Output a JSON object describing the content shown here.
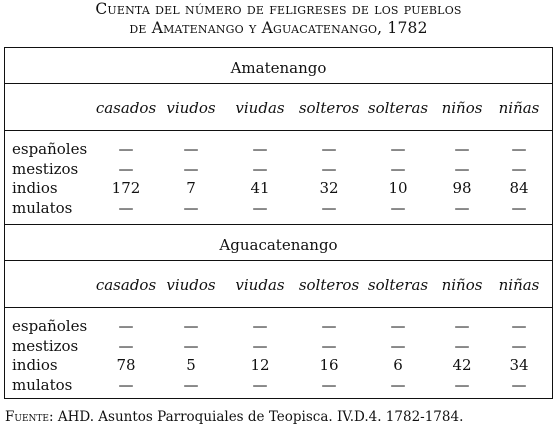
{
  "caption": {
    "line1": "Cuenta del número de feligreses de los pueblos",
    "line2": "de Amatenango y Aguacatenango, 1782"
  },
  "column_headers": [
    "casados",
    "viudos",
    "viudas",
    "solteros",
    "solteras",
    "niños",
    "niñas"
  ],
  "row_labels": [
    "españoles",
    "mestizos",
    "indios",
    "mulatos"
  ],
  "sections": [
    {
      "name": "Amatenango",
      "rows": [
        [
          "—",
          "—",
          "—",
          "—",
          "—",
          "—",
          "—"
        ],
        [
          "—",
          "—",
          "—",
          "—",
          "—",
          "—",
          "—"
        ],
        [
          "172",
          "7",
          "41",
          "32",
          "10",
          "98",
          "84"
        ],
        [
          "—",
          "—",
          "—",
          "—",
          "—",
          "—",
          "—"
        ]
      ]
    },
    {
      "name": "Aguacatenango",
      "rows": [
        [
          "—",
          "—",
          "—",
          "—",
          "—",
          "—",
          "—"
        ],
        [
          "—",
          "—",
          "—",
          "—",
          "—",
          "—",
          "—"
        ],
        [
          "78",
          "5",
          "12",
          "16",
          "6",
          "42",
          "34"
        ],
        [
          "—",
          "—",
          "—",
          "—",
          "—",
          "—",
          "—"
        ]
      ]
    }
  ],
  "source": {
    "label": "Fuente:",
    "text": "AHD. Asuntos Parroquiales de Teopisca. IV.D.4. 1782-1784."
  }
}
